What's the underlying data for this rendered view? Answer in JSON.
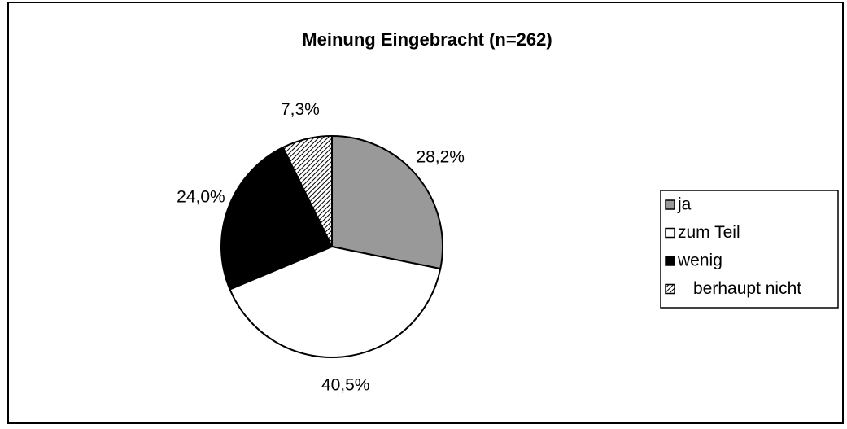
{
  "chart_data": {
    "type": "pie",
    "title": "Meinung Eingebracht (n=262)",
    "categories": [
      "ja",
      "zum Teil",
      "wenig",
      "berhaupt nicht"
    ],
    "values": [
      28.2,
      40.5,
      24.0,
      7.3
    ],
    "value_labels": [
      "28,2%",
      "40,5%",
      "24,0%",
      "7,3%"
    ],
    "colors": [
      "#999999",
      "#ffffff",
      "#000000",
      "#ffffff"
    ],
    "hatch": [
      false,
      false,
      false,
      true
    ],
    "legend": "right"
  }
}
